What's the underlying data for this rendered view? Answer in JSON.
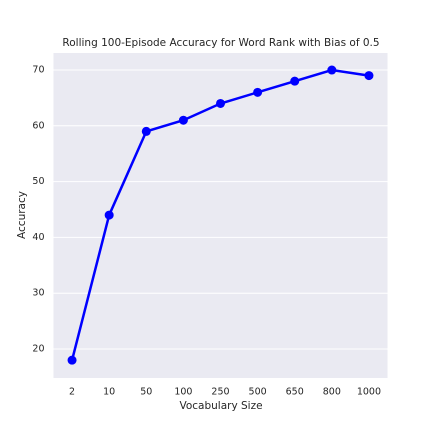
{
  "chart_data": {
    "type": "line",
    "title": "Rolling 100-Episode Accuracy for Word Rank with Bias of 0.5",
    "x_label": "Vocabulary Size",
    "y_label": "Accuracy",
    "categories": [
      "2",
      "10",
      "50",
      "100",
      "250",
      "500",
      "650",
      "800",
      "1000"
    ],
    "series": [
      {
        "name": "Accuracy",
        "color": "#0000ff",
        "values": [
          18,
          44,
          59,
          61,
          64,
          66,
          68,
          70,
          69
        ]
      }
    ],
    "ylim": [
      14.8,
      73.05
    ],
    "yticks": [
      20,
      30,
      40,
      50,
      60,
      70
    ],
    "grid": true
  }
}
